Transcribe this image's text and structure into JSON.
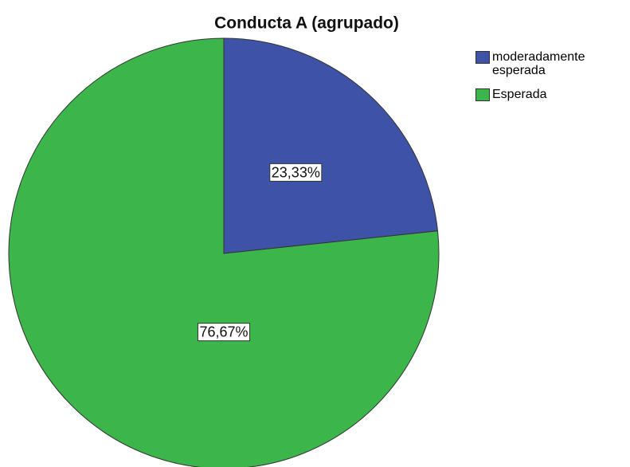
{
  "chart_data": {
    "type": "pie",
    "title": "Conducta A (agrupado)",
    "categories": [
      "moderadamente esperada",
      "Esperada"
    ],
    "values": [
      23.33,
      76.67
    ],
    "value_labels": [
      "23,33%",
      "76,67%"
    ],
    "colors": [
      "#3e53a7",
      "#3cb64a"
    ],
    "legend": "right"
  }
}
